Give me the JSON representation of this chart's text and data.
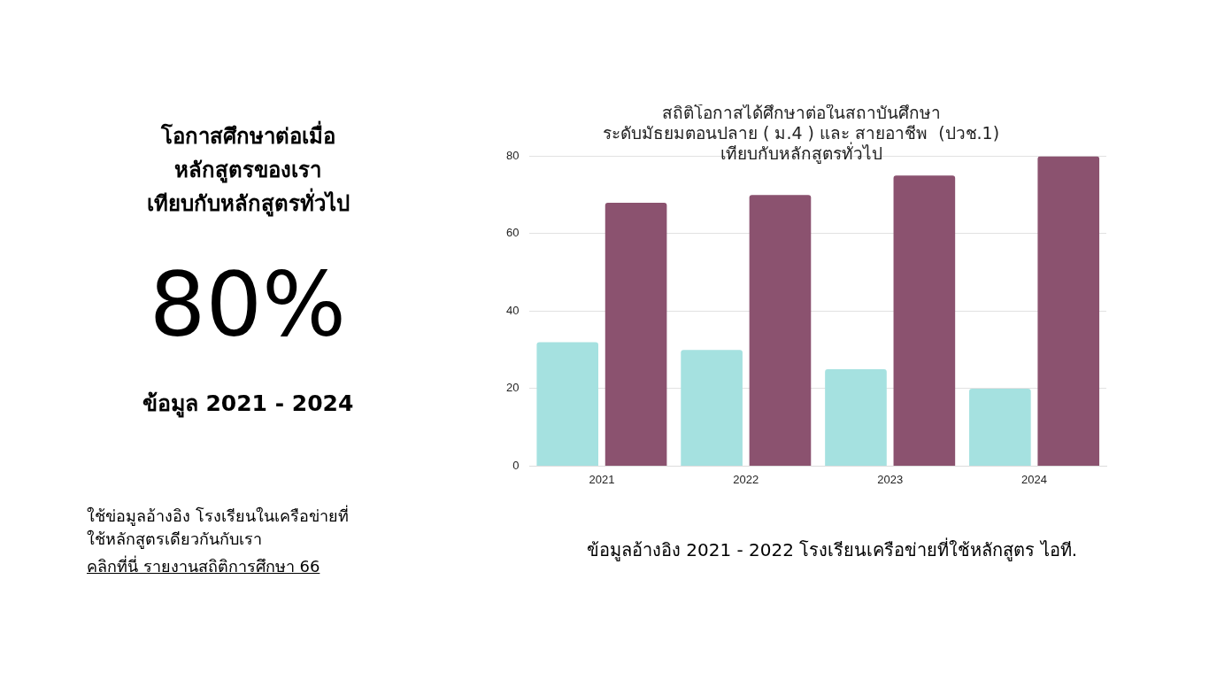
{
  "chart_data": [
    {
      "type": "other",
      "title": "โอกาสศึกษาต่อเมื่อ\nหลักสูตรของเรา\nเทียบกับหลักสูตรทั่วไป",
      "annotations": [
        "80%",
        "ข้อมูล 2021 - 2024",
        "ใช้ข่อมูลอ้างอิง โรงเรียนในเครือข่ายที่\nใช้หลักสูตรเดียวกันกับเรา",
        "คลิกที่นี่ รายงานสถิติการศึกษา 66"
      ]
    },
    {
      "type": "bar",
      "title": "สถิติโอกาสได้ศึกษาต่อในสถาบันศึกษา\nระดับมัธยมตอนปลาย ( ม.4 ) และ สายอาชีพ  (ปวช.1)\nเทียบกับหลักสูตรทั่วไป",
      "categories": [
        "2021",
        "2022",
        "2023",
        "2024"
      ],
      "series": [
        {
          "color": "#a5e1e0",
          "values": [
            32,
            30,
            25,
            20
          ]
        },
        {
          "color": "#8b526f",
          "values": [
            68,
            70,
            75,
            80
          ]
        }
      ],
      "ylim": [
        0,
        80
      ],
      "yticks": [
        0,
        20,
        40,
        60,
        80
      ],
      "grid": "y",
      "legend": false,
      "annotations": [
        "ข้อมูลอ้างอิง 2021 - 2022 โรงเรียนเครือข่ายที่ใช้หลักสูตร ไอที."
      ]
    }
  ]
}
